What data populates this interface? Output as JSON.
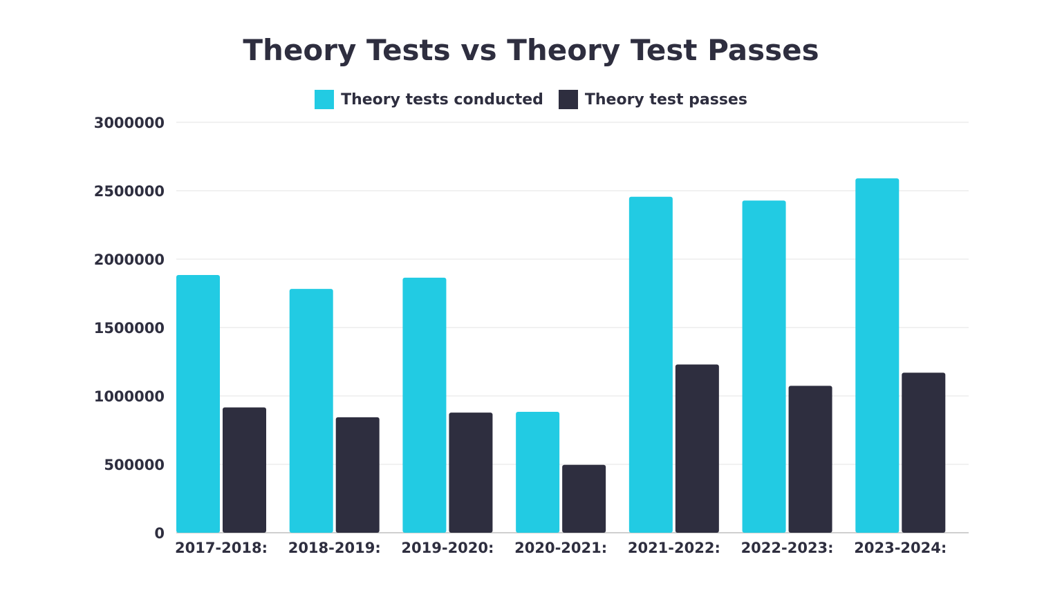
{
  "chart_data": {
    "type": "bar",
    "title": "Theory Tests vs Theory Test Passes",
    "categories": [
      "2017-2018:",
      "2018-2019:",
      "2019-2020:",
      "2020-2021:",
      "2021-2022:",
      "2022-2023:",
      "2023-2024:"
    ],
    "series": [
      {
        "name": "Theory tests conducted",
        "color": "#22cbe3",
        "values": [
          1884000,
          1782000,
          1864000,
          884000,
          2456000,
          2428000,
          2590000
        ]
      },
      {
        "name": "Theory test passes",
        "color": "#2e2e3f",
        "values": [
          916000,
          844000,
          878000,
          496000,
          1230000,
          1074000,
          1170000
        ]
      }
    ],
    "y_ticks": [
      "0",
      "500000",
      "1000000",
      "1500000",
      "2000000",
      "2500000",
      "3000000"
    ],
    "ylim": [
      0,
      3000000
    ],
    "xlabel": "",
    "ylabel": "",
    "grid": true,
    "legend_position": "top-center"
  }
}
